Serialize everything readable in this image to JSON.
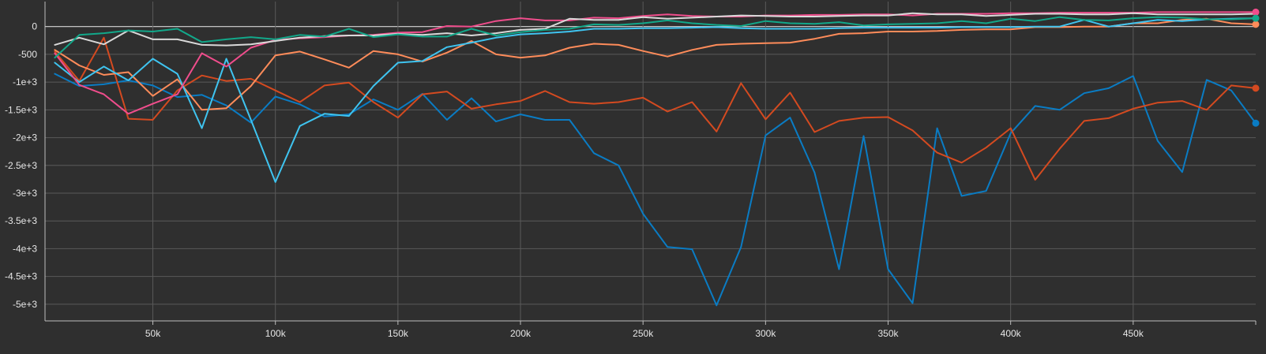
{
  "chart_data": {
    "type": "line",
    "title": "",
    "xlabel": "",
    "ylabel": "",
    "xlim": [
      6000,
      500000
    ],
    "ylim": [
      -5300,
      450
    ],
    "grid": true,
    "legend": "none",
    "x_ticks": [
      {
        "value": 50000,
        "label": "50k"
      },
      {
        "value": 100000,
        "label": "100k"
      },
      {
        "value": 150000,
        "label": "150k"
      },
      {
        "value": 200000,
        "label": "200k"
      },
      {
        "value": 250000,
        "label": "250k"
      },
      {
        "value": 300000,
        "label": "300k"
      },
      {
        "value": 350000,
        "label": "350k"
      },
      {
        "value": 400000,
        "label": "400k"
      },
      {
        "value": 450000,
        "label": "450k"
      }
    ],
    "y_ticks": [
      {
        "value": 0,
        "label": "0"
      },
      {
        "value": -500,
        "label": "-500"
      },
      {
        "value": -1000,
        "label": "-1e+3"
      },
      {
        "value": -1500,
        "label": "-1.5e+3"
      },
      {
        "value": -2000,
        "label": "-2e+3"
      },
      {
        "value": -2500,
        "label": "-2.5e+3"
      },
      {
        "value": -3000,
        "label": "-3e+3"
      },
      {
        "value": -3500,
        "label": "-3.5e+3"
      },
      {
        "value": -4000,
        "label": "-4e+3"
      },
      {
        "value": -4500,
        "label": "-4.5e+3"
      },
      {
        "value": -5000,
        "label": "-5e+3"
      }
    ],
    "series": [
      {
        "color": "#0a7cc4",
        "end_marker": true,
        "x": [
          10000,
          20000,
          30000,
          40000,
          50000,
          60000,
          70000,
          80000,
          90000,
          100000,
          110000,
          120000,
          130000,
          140000,
          150000,
          160000,
          170000,
          180000,
          190000,
          200000,
          210000,
          220000,
          230000,
          240000,
          250000,
          260000,
          270000,
          280000,
          290000,
          300000,
          310000,
          320000,
          330000,
          340000,
          350000,
          360000,
          370000,
          380000,
          390000,
          400000,
          410000,
          420000,
          430000,
          440000,
          450000,
          460000,
          470000,
          480000,
          490000,
          500000
        ],
        "y": [
          -850,
          -1070,
          -1040,
          -970,
          -1060,
          -1270,
          -1230,
          -1420,
          -1730,
          -1260,
          -1400,
          -1620,
          -1580,
          -1310,
          -1500,
          -1210,
          -1680,
          -1290,
          -1710,
          -1580,
          -1680,
          -1680,
          -2280,
          -2500,
          -3370,
          -3970,
          -4010,
          -5020,
          -3970,
          -1960,
          -1640,
          -2630,
          -4370,
          -1970,
          -4370,
          -4980,
          -1830,
          -3050,
          -2960,
          -1920,
          -1430,
          -1500,
          -1200,
          -1110,
          -890,
          -2060,
          -2620,
          -960,
          -1150,
          -1740
        ]
      },
      {
        "color": "#d44a20",
        "end_marker": true,
        "x": [
          10000,
          20000,
          30000,
          40000,
          50000,
          60000,
          70000,
          80000,
          90000,
          100000,
          110000,
          120000,
          130000,
          140000,
          150000,
          160000,
          170000,
          180000,
          190000,
          200000,
          210000,
          220000,
          230000,
          240000,
          250000,
          260000,
          270000,
          280000,
          290000,
          300000,
          310000,
          320000,
          330000,
          340000,
          350000,
          360000,
          370000,
          380000,
          390000,
          400000,
          410000,
          420000,
          430000,
          440000,
          450000,
          460000,
          470000,
          480000,
          490000,
          500000
        ],
        "y": [
          -450,
          -980,
          -200,
          -1660,
          -1680,
          -1150,
          -880,
          -980,
          -940,
          -1150,
          -1360,
          -1060,
          -1010,
          -1360,
          -1640,
          -1220,
          -1170,
          -1480,
          -1400,
          -1340,
          -1160,
          -1360,
          -1390,
          -1360,
          -1280,
          -1530,
          -1360,
          -1890,
          -1020,
          -1670,
          -1190,
          -1900,
          -1700,
          -1640,
          -1630,
          -1870,
          -2270,
          -2450,
          -2180,
          -1830,
          -2760,
          -2200,
          -1700,
          -1650,
          -1480,
          -1370,
          -1340,
          -1500,
          -1060,
          -1110
        ]
      },
      {
        "color": "#ff8c5a",
        "end_marker": true,
        "x": [
          10000,
          20000,
          30000,
          40000,
          50000,
          60000,
          70000,
          80000,
          90000,
          100000,
          110000,
          120000,
          130000,
          140000,
          150000,
          160000,
          170000,
          180000,
          190000,
          200000,
          210000,
          220000,
          230000,
          240000,
          250000,
          260000,
          270000,
          280000,
          290000,
          300000,
          310000,
          320000,
          330000,
          340000,
          350000,
          360000,
          370000,
          380000,
          390000,
          400000,
          410000,
          420000,
          430000,
          440000,
          450000,
          460000,
          470000,
          480000,
          490000,
          500000
        ],
        "y": [
          -420,
          -700,
          -870,
          -820,
          -1250,
          -950,
          -1500,
          -1470,
          -1070,
          -520,
          -450,
          -590,
          -740,
          -440,
          -500,
          -630,
          -470,
          -260,
          -500,
          -560,
          -520,
          -380,
          -310,
          -330,
          -440,
          -540,
          -420,
          -330,
          -310,
          -300,
          -290,
          -220,
          -130,
          -120,
          -90,
          -90,
          -80,
          -60,
          -50,
          -50,
          -10,
          -10,
          0,
          0,
          60,
          60,
          120,
          140,
          60,
          40
        ]
      },
      {
        "color": "#3fc4f0",
        "end_marker": false,
        "x": [
          10000,
          20000,
          30000,
          40000,
          50000,
          60000,
          70000,
          80000,
          90000,
          100000,
          110000,
          120000,
          130000,
          140000,
          150000,
          160000,
          170000,
          180000,
          190000,
          200000,
          210000,
          220000,
          230000,
          240000,
          250000,
          260000,
          270000,
          280000,
          290000,
          300000,
          310000,
          320000,
          330000,
          340000,
          350000,
          360000,
          370000,
          380000,
          390000,
          400000,
          410000,
          420000,
          430000,
          440000,
          450000,
          460000,
          470000,
          480000,
          490000,
          500000
        ],
        "y": [
          -650,
          -1000,
          -720,
          -970,
          -580,
          -850,
          -1830,
          -580,
          -1680,
          -2800,
          -1790,
          -1570,
          -1610,
          -1070,
          -650,
          -620,
          -370,
          -290,
          -200,
          -140,
          -120,
          -90,
          -40,
          -40,
          -30,
          -30,
          -20,
          -10,
          -30,
          -40,
          -40,
          -40,
          -30,
          -20,
          -20,
          -20,
          -20,
          -10,
          -10,
          -10,
          0,
          0,
          120,
          0,
          60,
          120,
          100,
          130,
          140,
          150
        ]
      },
      {
        "color": "#f04d8c",
        "end_marker": true,
        "x": [
          10000,
          20000,
          30000,
          40000,
          50000,
          60000,
          70000,
          80000,
          90000,
          100000,
          110000,
          120000,
          130000,
          140000,
          150000,
          160000,
          170000,
          180000,
          190000,
          200000,
          210000,
          220000,
          230000,
          240000,
          250000,
          260000,
          270000,
          280000,
          290000,
          300000,
          310000,
          320000,
          330000,
          340000,
          350000,
          360000,
          370000,
          380000,
          390000,
          400000,
          410000,
          420000,
          430000,
          440000,
          450000,
          460000,
          470000,
          480000,
          490000,
          500000
        ],
        "y": [
          -480,
          -1050,
          -1220,
          -1570,
          -1390,
          -1220,
          -480,
          -720,
          -380,
          -240,
          -210,
          -190,
          -160,
          -150,
          -110,
          -100,
          10,
          0,
          100,
          150,
          110,
          110,
          160,
          150,
          190,
          220,
          190,
          180,
          180,
          200,
          200,
          210,
          210,
          220,
          220,
          200,
          230,
          230,
          230,
          240,
          240,
          250,
          250,
          250,
          250,
          260,
          260,
          260,
          260,
          260
        ]
      },
      {
        "color": "#d9d9d9",
        "end_marker": false,
        "x": [
          10000,
          20000,
          30000,
          40000,
          50000,
          60000,
          70000,
          80000,
          90000,
          100000,
          110000,
          120000,
          130000,
          140000,
          150000,
          160000,
          170000,
          180000,
          190000,
          200000,
          210000,
          220000,
          230000,
          240000,
          250000,
          260000,
          270000,
          280000,
          290000,
          300000,
          310000,
          320000,
          330000,
          340000,
          350000,
          360000,
          370000,
          380000,
          390000,
          400000,
          410000,
          420000,
          430000,
          440000,
          450000,
          460000,
          470000,
          480000,
          490000,
          500000
        ],
        "y": [
          -330,
          -200,
          -320,
          -70,
          -230,
          -230,
          -330,
          -340,
          -320,
          -260,
          -200,
          -170,
          -160,
          -160,
          -130,
          -150,
          -120,
          -160,
          -120,
          -60,
          -40,
          140,
          120,
          120,
          170,
          140,
          160,
          180,
          200,
          190,
          180,
          180,
          190,
          200,
          200,
          240,
          220,
          220,
          190,
          210,
          230,
          230,
          220,
          220,
          240,
          220,
          220,
          220,
          220,
          230
        ]
      },
      {
        "color": "#12a88a",
        "end_marker": true,
        "x": [
          10000,
          20000,
          30000,
          40000,
          50000,
          60000,
          70000,
          80000,
          90000,
          100000,
          110000,
          120000,
          130000,
          140000,
          150000,
          160000,
          170000,
          180000,
          190000,
          200000,
          210000,
          220000,
          230000,
          240000,
          250000,
          260000,
          270000,
          280000,
          290000,
          300000,
          310000,
          320000,
          330000,
          340000,
          350000,
          360000,
          370000,
          380000,
          390000,
          400000,
          410000,
          420000,
          430000,
          440000,
          450000,
          460000,
          470000,
          480000,
          490000,
          500000
        ],
        "y": [
          -560,
          -150,
          -120,
          -70,
          -90,
          -40,
          -280,
          -230,
          -190,
          -230,
          -150,
          -180,
          -40,
          -190,
          -140,
          -180,
          -180,
          -40,
          -160,
          -100,
          -60,
          -40,
          40,
          30,
          60,
          110,
          60,
          30,
          10,
          100,
          60,
          50,
          80,
          20,
          40,
          50,
          60,
          100,
          60,
          140,
          100,
          170,
          120,
          110,
          150,
          170,
          160,
          130,
          130,
          150
        ]
      }
    ]
  }
}
